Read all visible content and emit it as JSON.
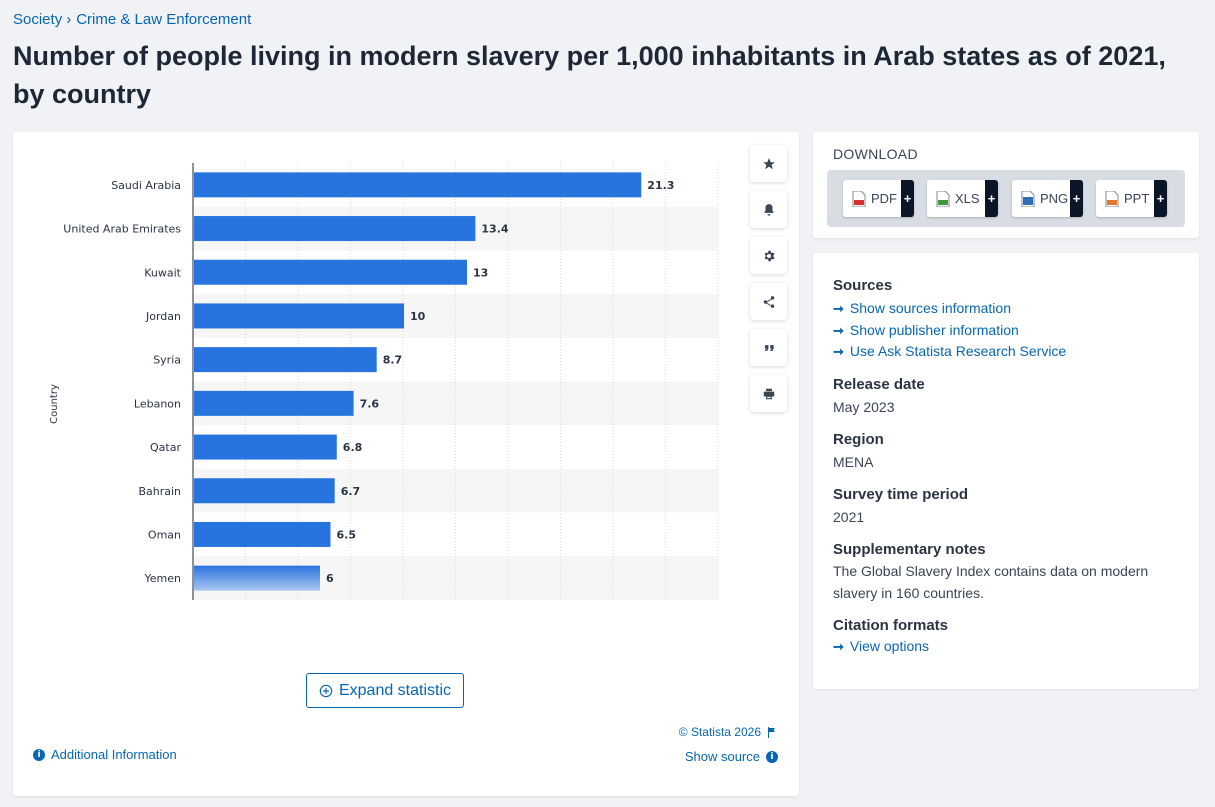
{
  "breadcrumb": {
    "items": [
      "Society",
      "Crime & Law Enforcement"
    ],
    "separator": "›"
  },
  "title": "Number of people living in modern slavery per 1,000 inhabitants in Arab states as of 2021, by country",
  "chart_data": {
    "type": "bar",
    "orientation": "horizontal",
    "categories": [
      "Saudi Arabia",
      "United Arab Emirates",
      "Kuwait",
      "Jordan",
      "Syria",
      "Lebanon",
      "Qatar",
      "Bahrain",
      "Oman",
      "Yemen"
    ],
    "values": [
      21.3,
      13.4,
      13,
      10,
      8.7,
      7.6,
      6.8,
      6.7,
      6.5,
      6
    ],
    "value_labels": [
      "21.3",
      "13.4",
      "13",
      "10",
      "8.7",
      "7.6",
      "6.8",
      "6.7",
      "6.5",
      "6"
    ],
    "xlim": [
      0,
      25
    ],
    "ylabel": "Country",
    "bar_color": "#2874de",
    "grid": true
  },
  "tools": {
    "items": [
      {
        "name": "star-icon",
        "action": "favorite"
      },
      {
        "name": "bell-icon",
        "action": "notify"
      },
      {
        "name": "gear-icon",
        "action": "settings"
      },
      {
        "name": "share-icon",
        "action": "share"
      },
      {
        "name": "quote-icon",
        "action": "cite"
      },
      {
        "name": "print-icon",
        "action": "print"
      }
    ]
  },
  "chart_footer": {
    "expand_label": "Expand statistic",
    "copyright": "© Statista 2026",
    "additional_info": "Additional Information",
    "show_source": "Show source"
  },
  "download": {
    "title": "DOWNLOAD",
    "buttons": [
      {
        "label": "PDF",
        "color": "#d9302c"
      },
      {
        "label": "XLS",
        "color": "#3c9a3c"
      },
      {
        "label": "PNG",
        "color": "#2f6fb8"
      },
      {
        "label": "PPT",
        "color": "#e5762b"
      }
    ],
    "plus": "+"
  },
  "info": {
    "sources_heading": "Sources",
    "source_links": [
      "Show sources information",
      "Show publisher information",
      "Use Ask Statista Research Service"
    ],
    "release_heading": "Release date",
    "release_value": "May 2023",
    "region_heading": "Region",
    "region_value": "MENA",
    "survey_heading": "Survey time period",
    "survey_value": "2021",
    "notes_heading": "Supplementary notes",
    "notes_value": "The Global Slavery Index contains data on modern slavery in 160 countries.",
    "citation_heading": "Citation formats",
    "citation_link": "View options"
  },
  "colors": {
    "link": "#0666b3",
    "bar": "#2874de",
    "background": "#f1f2f5"
  }
}
